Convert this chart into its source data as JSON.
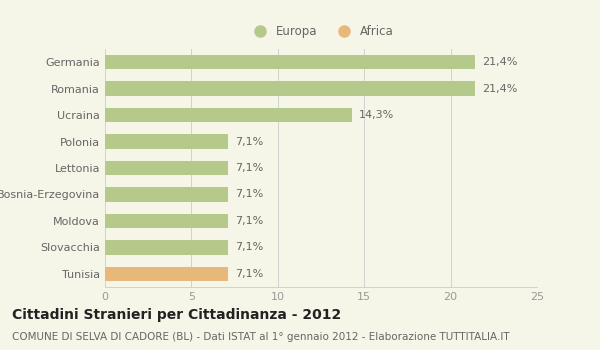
{
  "categories": [
    "Tunisia",
    "Slovacchia",
    "Moldova",
    "Bosnia-Erzegovina",
    "Lettonia",
    "Polonia",
    "Ucraina",
    "Romania",
    "Germania"
  ],
  "values": [
    7.1,
    7.1,
    7.1,
    7.1,
    7.1,
    7.1,
    14.3,
    21.4,
    21.4
  ],
  "labels": [
    "7,1%",
    "7,1%",
    "7,1%",
    "7,1%",
    "7,1%",
    "7,1%",
    "14,3%",
    "21,4%",
    "21,4%"
  ],
  "colors": [
    "#e8b87a",
    "#b5c98a",
    "#b5c98a",
    "#b5c98a",
    "#b5c98a",
    "#b5c98a",
    "#b5c98a",
    "#b5c98a",
    "#b5c98a"
  ],
  "europa_color": "#b5c98a",
  "africa_color": "#e8b87a",
  "legend_europa": "Europa",
  "legend_africa": "Africa",
  "xlim": [
    0,
    25
  ],
  "xticks": [
    0,
    5,
    10,
    15,
    20,
    25
  ],
  "title": "Cittadini Stranieri per Cittadinanza - 2012",
  "subtitle": "COMUNE DI SELVA DI CADORE (BL) - Dati ISTAT al 1° gennaio 2012 - Elaborazione TUTTITALIA.IT",
  "background_color": "#f5f5e8",
  "bar_height": 0.55,
  "title_fontsize": 10,
  "subtitle_fontsize": 7.5,
  "label_fontsize": 8,
  "ytick_fontsize": 8,
  "xtick_fontsize": 8
}
